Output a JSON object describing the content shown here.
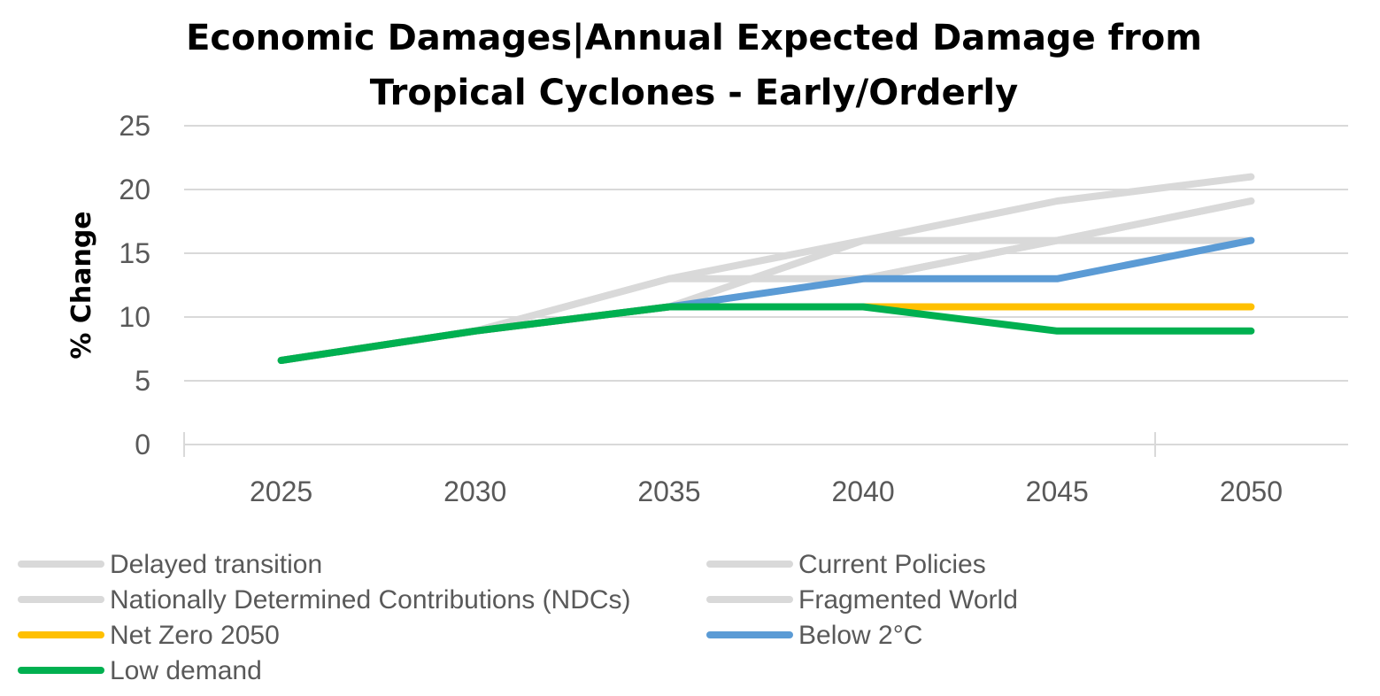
{
  "chart_data": {
    "type": "line",
    "title_lines": [
      "Economic Damages|Annual Expected Damage from",
      "Tropical Cyclones - Early/Orderly"
    ],
    "xlabel": "",
    "ylabel": "% Change",
    "categories": [
      "2025",
      "2030",
      "2035",
      "2040",
      "2045",
      "2050"
    ],
    "ylim": [
      0,
      25
    ],
    "yticks": [
      0,
      5,
      10,
      15,
      20,
      25
    ],
    "grid": true,
    "legend_position": "bottom",
    "series": [
      {
        "name": "Delayed transition",
        "color": "#d9d9d9",
        "values": [
          6.6,
          8.9,
          13.0,
          16.0,
          19.1,
          21.0
        ]
      },
      {
        "name": "Current Policies",
        "color": "#d9d9d9",
        "values": [
          6.6,
          8.9,
          13.0,
          13.0,
          16.0,
          19.1
        ]
      },
      {
        "name": "Nationally Determined Contributions (NDCs)",
        "color": "#d9d9d9",
        "values": [
          6.6,
          8.9,
          10.8,
          16.0,
          16.0,
          16.0
        ]
      },
      {
        "name": "Fragmented World",
        "color": "#d9d9d9",
        "values": [
          6.6,
          8.9,
          10.8,
          13.0,
          16.0,
          19.1
        ]
      },
      {
        "name": "Net Zero 2050",
        "color": "#ffc000",
        "values": [
          6.6,
          8.9,
          10.8,
          10.8,
          10.8,
          10.8
        ]
      },
      {
        "name": "Below 2°C",
        "color": "#5b9bd5",
        "values": [
          6.6,
          8.9,
          10.8,
          13.0,
          13.0,
          16.0
        ]
      },
      {
        "name": "Low demand",
        "color": "#00b050",
        "values": [
          6.6,
          8.9,
          10.8,
          10.8,
          8.9,
          8.9
        ]
      }
    ]
  }
}
